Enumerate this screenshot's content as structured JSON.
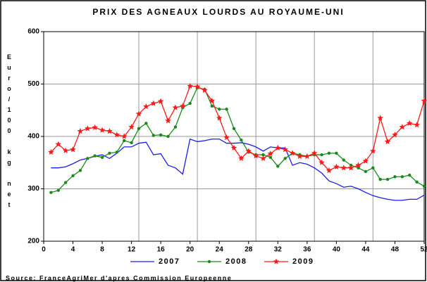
{
  "chart_data": {
    "type": "line",
    "title": "PRIX DES AGNEAUX LOURDS AU ROYAUME-UNI",
    "y_label": "Euro/100 kg net",
    "source": "Source: FranceAgriMer d'apres Commission Europeenne",
    "x": [
      1,
      2,
      3,
      4,
      5,
      6,
      7,
      8,
      9,
      10,
      11,
      12,
      13,
      14,
      15,
      16,
      17,
      18,
      19,
      20,
      21,
      22,
      23,
      24,
      25,
      26,
      27,
      28,
      29,
      30,
      31,
      32,
      33,
      34,
      35,
      36,
      37,
      38,
      39,
      40,
      41,
      42,
      43,
      44,
      45,
      46,
      47,
      48,
      49,
      50,
      51,
      52
    ],
    "xlim": [
      0,
      52
    ],
    "xticks": [
      0,
      4,
      8,
      12,
      16,
      20,
      24,
      28,
      32,
      36,
      40,
      44,
      48,
      52
    ],
    "xgrid": [
      13,
      21,
      29,
      37,
      45
    ],
    "ylim": [
      200,
      600
    ],
    "yticks": [
      200,
      300,
      400,
      500,
      600
    ],
    "ygrid": [
      300,
      400,
      500
    ],
    "series": [
      {
        "name": "2007",
        "color": "#1c1cf0",
        "marker": "none",
        "values": [
          340,
          340,
          342,
          348,
          355,
          358,
          362,
          365,
          358,
          368,
          380,
          380,
          387,
          389,
          365,
          367,
          345,
          340,
          328,
          395,
          390,
          392,
          395,
          395,
          387,
          387,
          388,
          385,
          380,
          372,
          380,
          378,
          378,
          345,
          350,
          347,
          340,
          330,
          315,
          310,
          303,
          305,
          300,
          293,
          287,
          283,
          280,
          278,
          278,
          280,
          280,
          288
        ]
      },
      {
        "name": "2008",
        "color": "#1a8a1a",
        "marker": "circle",
        "values": [
          293,
          297,
          312,
          325,
          335,
          358,
          363,
          360,
          368,
          370,
          392,
          388,
          415,
          425,
          402,
          403,
          400,
          418,
          455,
          463,
          493,
          490,
          458,
          452,
          452,
          415,
          393,
          370,
          365,
          365,
          360,
          343,
          358,
          368,
          365,
          362,
          365,
          365,
          368,
          368,
          355,
          345,
          340,
          333,
          340,
          318,
          318,
          323,
          323,
          326,
          313,
          305
        ]
      },
      {
        "name": "2009",
        "color": "#ff1a1a",
        "marker": "star",
        "values": [
          370,
          385,
          373,
          375,
          410,
          415,
          417,
          412,
          410,
          403,
          400,
          418,
          443,
          457,
          463,
          467,
          430,
          455,
          458,
          496,
          495,
          488,
          468,
          435,
          398,
          378,
          358,
          372,
          363,
          358,
          367,
          378,
          375,
          368,
          362,
          362,
          368,
          350,
          335,
          342,
          340,
          340,
          345,
          353,
          372,
          435,
          390,
          403,
          418,
          425,
          422,
          468
        ]
      }
    ]
  }
}
